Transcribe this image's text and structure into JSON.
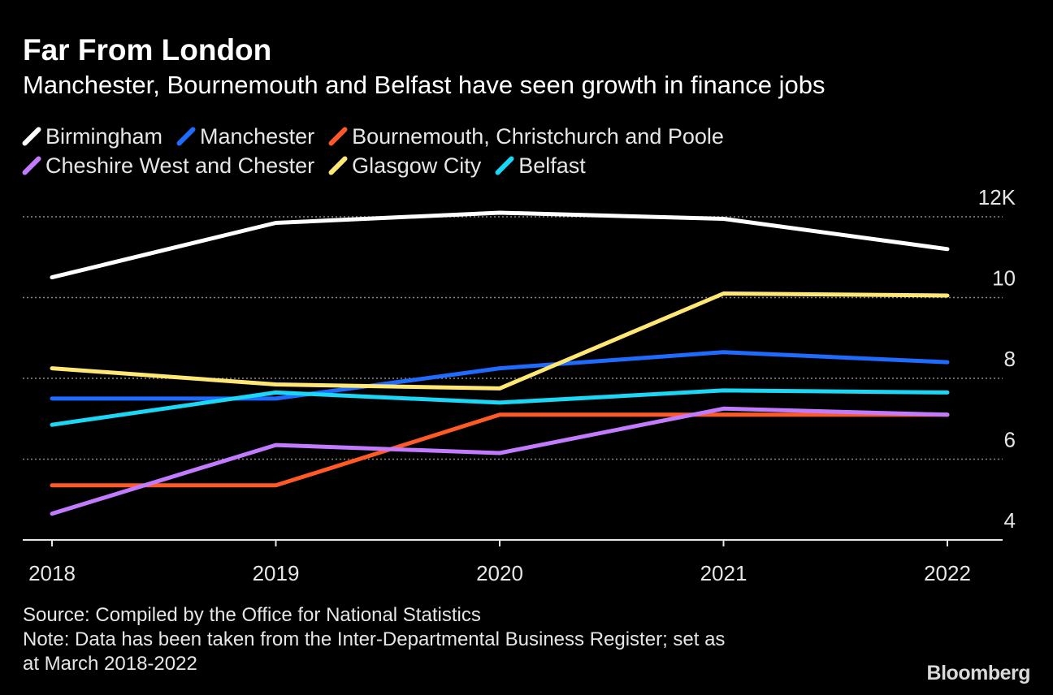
{
  "header": {
    "title": "Far From London",
    "subtitle": "Manchester, Bournemouth and Belfast have seen growth in finance jobs"
  },
  "legend": {
    "rows": [
      [
        {
          "label": "Birmingham",
          "color": "#ffffff"
        },
        {
          "label": "Manchester",
          "color": "#1f6bff"
        },
        {
          "label": "Bournemouth, Christchurch and Poole",
          "color": "#ff5a26"
        }
      ],
      [
        {
          "label": "Cheshire West and Chester",
          "color": "#c27bff"
        },
        {
          "label": "Glasgow City",
          "color": "#ffe773"
        },
        {
          "label": "Belfast",
          "color": "#19d7f5"
        }
      ]
    ]
  },
  "chart_data": {
    "type": "line",
    "x": [
      "2018",
      "2019",
      "2020",
      "2021",
      "2022"
    ],
    "ylim": [
      4,
      12
    ],
    "yticks": [
      4,
      6,
      8,
      10,
      12
    ],
    "ytick_labels": [
      "4",
      "6",
      "8",
      "10",
      "12K"
    ],
    "y_axis_side": "right",
    "grid": "dotted horizontal",
    "series": [
      {
        "name": "Birmingham",
        "color": "#ffffff",
        "values": [
          10.5,
          11.85,
          12.1,
          11.95,
          11.2
        ]
      },
      {
        "name": "Manchester",
        "color": "#1f6bff",
        "values": [
          7.5,
          7.5,
          8.25,
          8.65,
          8.4
        ]
      },
      {
        "name": "Bournemouth, Christchurch and Poole",
        "color": "#ff5a26",
        "values": [
          5.35,
          5.35,
          7.1,
          7.1,
          7.1
        ]
      },
      {
        "name": "Cheshire West and Chester",
        "color": "#c27bff",
        "values": [
          4.65,
          6.35,
          6.15,
          7.25,
          7.1
        ]
      },
      {
        "name": "Glasgow City",
        "color": "#ffe773",
        "values": [
          8.25,
          7.85,
          7.75,
          10.1,
          10.05
        ]
      },
      {
        "name": "Belfast",
        "color": "#19d7f5",
        "values": [
          6.85,
          7.65,
          7.4,
          7.7,
          7.65
        ]
      }
    ]
  },
  "footer": {
    "source": "Source: Compiled by the Office for National Statistics",
    "note_line1": "Note: Data has been taken from the Inter-Departmental Business Register; set as",
    "note_line2": "at March 2018-2022"
  },
  "brand": {
    "logo": "Bloomberg"
  }
}
